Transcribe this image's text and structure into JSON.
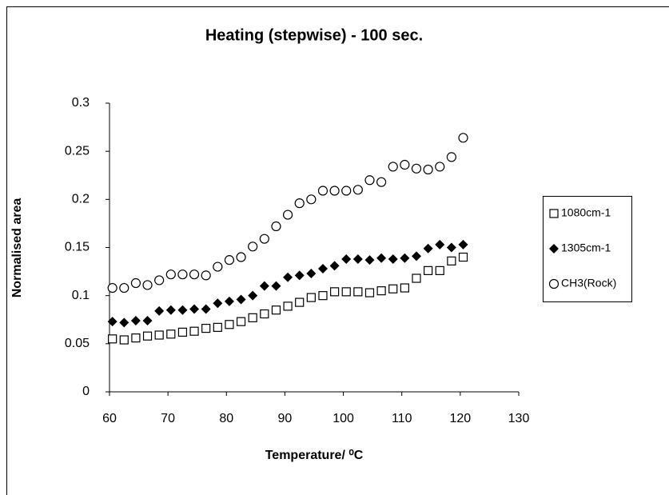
{
  "chart_data": {
    "type": "scatter",
    "title": "Heating (stepwise) - 100 sec.",
    "x_label": "Temperature/ ⁰C",
    "y_label": "Normalised area",
    "x": [
      60.5,
      62.5,
      64.5,
      66.5,
      68.5,
      70.5,
      72.5,
      74.5,
      76.5,
      78.5,
      80.5,
      82.5,
      84.5,
      86.5,
      88.5,
      90.5,
      92.5,
      94.5,
      96.5,
      98.5,
      100.5,
      102.5,
      104.5,
      106.5,
      108.5,
      110.5,
      112.5,
      114.5,
      116.5,
      118.5,
      120.5
    ],
    "series": [
      {
        "name": "1080cm-1",
        "color": "#000000",
        "marker": "square",
        "values": [
          0.055,
          0.054,
          0.056,
          0.058,
          0.059,
          0.06,
          0.062,
          0.063,
          0.066,
          0.067,
          0.07,
          0.073,
          0.077,
          0.081,
          0.085,
          0.089,
          0.093,
          0.098,
          0.1,
          0.104,
          0.104,
          0.104,
          0.103,
          0.105,
          0.107,
          0.108,
          0.118,
          0.126,
          0.126,
          0.136,
          0.14
        ]
      },
      {
        "name": "1305cm-1",
        "color": "#000000",
        "marker": "diamond",
        "values": [
          0.073,
          0.072,
          0.074,
          0.074,
          0.084,
          0.085,
          0.085,
          0.086,
          0.086,
          0.092,
          0.094,
          0.096,
          0.1,
          0.11,
          0.11,
          0.119,
          0.121,
          0.123,
          0.128,
          0.131,
          0.138,
          0.138,
          0.137,
          0.139,
          0.138,
          0.139,
          0.141,
          0.149,
          0.153,
          0.15,
          0.153
        ]
      },
      {
        "name": "CH3(Rock)",
        "color": "#000000",
        "marker": "circle",
        "values": [
          0.108,
          0.108,
          0.113,
          0.111,
          0.116,
          0.122,
          0.122,
          0.122,
          0.121,
          0.13,
          0.137,
          0.14,
          0.151,
          0.159,
          0.172,
          0.184,
          0.196,
          0.2,
          0.209,
          0.209,
          0.209,
          0.21,
          0.22,
          0.218,
          0.234,
          0.236,
          0.232,
          0.231,
          0.234,
          0.244,
          0.264
        ]
      }
    ],
    "xlim": [
      60,
      130
    ],
    "xticks": [
      60,
      70,
      80,
      90,
      100,
      110,
      120,
      130
    ],
    "ylim": [
      0,
      0.3
    ],
    "yticks": [
      0,
      0.05,
      0.1,
      0.15,
      0.2,
      0.25,
      0.3
    ],
    "grid": false,
    "legend": "right"
  }
}
